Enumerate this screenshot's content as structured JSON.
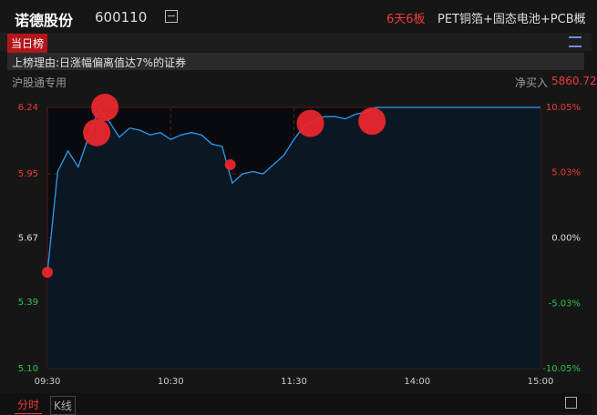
{
  "header": {
    "name": "诺德股份",
    "code": "600110",
    "streak": "6天6板",
    "concept": "PET铜箔+固态电池+PCB概"
  },
  "tab": "当日榜",
  "reason": "上榜理由:日涨幅偏离值达7%的证券",
  "seat": "沪股通专用",
  "net_buy_label": "净买入",
  "net_buy": 5860.72,
  "chart_data": {
    "type": "line",
    "x": [
      "09:30",
      "09:35",
      "09:40",
      "09:45",
      "09:50",
      "09:55",
      "10:00",
      "10:05",
      "10:10",
      "10:15",
      "10:20",
      "10:25",
      "10:30",
      "10:35",
      "10:40",
      "10:45",
      "10:50",
      "10:55",
      "11:00",
      "11:05",
      "11:10",
      "11:15",
      "11:20",
      "11:25",
      "11:30",
      "13:05",
      "13:10",
      "13:15",
      "13:20",
      "13:25",
      "13:30",
      "13:35",
      "13:40",
      "13:45",
      "13:50",
      "13:55",
      "14:00",
      "14:05",
      "14:10",
      "14:15",
      "14:20",
      "14:25",
      "14:30",
      "14:35",
      "14:40",
      "14:45",
      "14:50",
      "14:55",
      "15:00"
    ],
    "values": [
      5.52,
      5.96,
      6.05,
      5.98,
      6.11,
      6.23,
      6.18,
      6.11,
      6.15,
      6.14,
      6.12,
      6.13,
      6.1,
      6.12,
      6.13,
      6.12,
      6.08,
      6.07,
      5.91,
      5.95,
      5.96,
      5.95,
      5.99,
      6.03,
      6.1,
      6.16,
      6.18,
      6.2,
      6.2,
      6.19,
      6.21,
      6.22,
      6.24,
      6.24,
      6.24,
      6.24,
      6.24,
      6.24,
      6.24,
      6.24,
      6.24,
      6.24,
      6.24,
      6.24,
      6.24,
      6.24,
      6.24,
      6.24,
      6.24
    ],
    "color": "#2e9bf0",
    "markers": [
      {
        "x": "09:30",
        "value": 5.52,
        "size": "small"
      },
      {
        "x": "09:54",
        "value": 6.13,
        "size": "large"
      },
      {
        "x": "09:58",
        "value": 6.24,
        "size": "large"
      },
      {
        "x": "10:59",
        "value": 5.99,
        "size": "small"
      },
      {
        "x": "13:08",
        "value": 6.17,
        "size": "large"
      },
      {
        "x": "13:38",
        "value": 6.18,
        "size": "large"
      }
    ],
    "marker_color": "#e8272c",
    "ylim": [
      5.1,
      6.24
    ],
    "yticks": [
      6.24,
      5.95,
      5.67,
      5.39,
      {
        "value": 5.1,
        "label": "5.10"
      }
    ],
    "y2lim": [
      -10.05,
      10.05
    ],
    "y2ticks": [
      {
        "value": 10.05,
        "label": "10.05%"
      },
      {
        "value": 5.03,
        "label": "5.03%"
      },
      {
        "value": 0,
        "label": "0.00%"
      },
      {
        "value": -5.03,
        "label": "-5.03%"
      },
      {
        "value": -10.05,
        "label": "-10.05%"
      }
    ],
    "xticks": [
      "09:30",
      "10:30",
      "11:30",
      "14:00",
      "15:00"
    ],
    "grid": true
  },
  "bottom_tabs": [
    "分时",
    "K线"
  ]
}
